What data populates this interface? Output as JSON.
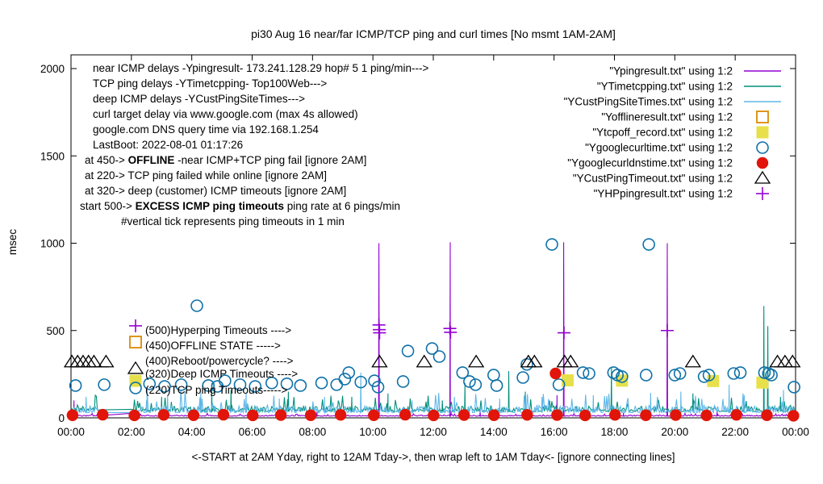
{
  "title": "pi30 Aug 16  near/far ICMP/TCP ping and curl times [No msmt 1AM-2AM]",
  "y_axis": {
    "label": "msec",
    "ticks": [
      0,
      500,
      1000,
      1500,
      2000
    ],
    "range": [
      0,
      2078
    ]
  },
  "x_axis": {
    "label": "<-START at 2AM Yday, right to 12AM Tday->, then wrap left to 1AM Tday<- [ignore connecting lines]",
    "tick_labels": [
      "00:00",
      "02:00",
      "04:00",
      "06:00",
      "08:00",
      "10:00",
      "12:00",
      "14:00",
      "16:00",
      "18:00",
      "20:00",
      "22:00",
      "00:00"
    ],
    "range_hours": [
      0,
      24
    ]
  },
  "info_lines": [
    {
      "x": 115,
      "segs": [
        {
          "t": "near ICMP delays -Ypingresult- 173.241.128.29 hop# 5 1 ping/min--->"
        }
      ]
    },
    {
      "x": 115,
      "segs": [
        {
          "t": "TCP ping delays -YTimetcpping- Top100Web--->"
        }
      ]
    },
    {
      "x": 115,
      "segs": [
        {
          "t": "deep ICMP delays -YCustPingSiteTimes--->"
        }
      ]
    },
    {
      "x": 115,
      "segs": [
        {
          "t": "curl target delay via www.google.com (max 4s allowed)"
        }
      ]
    },
    {
      "x": 115,
      "segs": [
        {
          "t": "google.com DNS query time via 192.168.1.254"
        }
      ]
    },
    {
      "x": 115,
      "segs": [
        {
          "t": "LastBoot: 2022-08-01 01:17:26"
        }
      ]
    },
    {
      "x": 105,
      "segs": [
        {
          "t": "at 450->  "
        },
        {
          "t": "OFFLINE",
          "b": true
        },
        {
          "t": " -near ICMP+TCP ping fail [ignore 2AM]"
        }
      ]
    },
    {
      "x": 105,
      "segs": [
        {
          "t": "at 220-> TCP ping failed while online [ignore 2AM]"
        }
      ]
    },
    {
      "x": 105,
      "segs": [
        {
          "t": "at 320-> deep (customer) ICMP timeouts [ignore 2AM]"
        }
      ]
    },
    {
      "x": 99,
      "segs": [
        {
          "t": "start 500->  "
        },
        {
          "t": "EXCESS ICMP ping timeouts",
          "b": true
        },
        {
          "t": " ping rate at 6 pings/min"
        }
      ]
    },
    {
      "x": 150,
      "segs": [
        {
          "t": "#vertical tick represents ping timeouts in 1 min"
        }
      ]
    }
  ],
  "legend": [
    {
      "label": "\"Ypingresult.txt\" using 1:2",
      "marker": "line",
      "color": "#9400D3"
    },
    {
      "label": "\"YTimetcpping.txt\" using 1:2",
      "marker": "line",
      "color": "#008F7A"
    },
    {
      "label": "\"YCustPingSiteTimes.txt\" using 1:2",
      "marker": "line",
      "color": "#5FB7E8"
    },
    {
      "label": "\"Yofflineresult.txt\" using 1:2",
      "marker": "osquare",
      "color": "#DB8B00"
    },
    {
      "label": "\"Ytcpoff_record.txt\" using 1:2",
      "marker": "fsquare",
      "color": "#E7E04B"
    },
    {
      "label": "\"Ygooglecurltime.txt\" using 1:2",
      "marker": "circle",
      "color": "#0F71A8"
    },
    {
      "label": "\"Ygooglecurldnstime.txt\" using 1:2",
      "marker": "fcircle",
      "color": "#E1150A"
    },
    {
      "label": "\"YCustPingTimeout.txt\" using 1:2",
      "marker": "triangle",
      "color": "#000000"
    },
    {
      "label": "\"YHPpingresult.txt\" using 1:2",
      "marker": "plus",
      "color": "#9400D3"
    }
  ],
  "annotations": [
    {
      "text": "(500)Hyperping Timeouts ---->",
      "ms": 501,
      "markers": [
        {
          "type": "plus",
          "color": "#9400D3",
          "ms": 527
        }
      ]
    },
    {
      "text": "(450)OFFLINE STATE ----->",
      "ms": 413,
      "markers": [
        {
          "type": "osquare",
          "color": "#DB8B00",
          "ms": 434
        }
      ]
    },
    {
      "text": "(400)Reboot/powercycle? ---->",
      "ms": 326,
      "markers": []
    },
    {
      "text": "(320)Deep ICMP Timeouts ---->",
      "ms": 252,
      "markers": [
        {
          "type": "triangle",
          "color": "#000000",
          "ms": 282
        }
      ]
    },
    {
      "text": "(220)TCP ping Timeouts----->",
      "ms": 159,
      "markers": [
        {
          "type": "fsquare",
          "color": "#E7E04B",
          "ms": 212
        },
        {
          "type": "circle",
          "color": "#0F71A8",
          "ms": 171
        }
      ]
    }
  ],
  "chart_data": {
    "type": "line",
    "title": "pi30 Aug 16  near/far ICMP/TCP ping and curl times [No msmt 1AM-2AM]",
    "xlabel": "<-START at 2AM Yday, right to 12AM Tday->, then wrap left to 1AM Tday<- [ignore connecting lines]",
    "ylabel": "msec",
    "xlim_hours": [
      0,
      24
    ],
    "ylim": [
      0,
      2078
    ],
    "grid": false,
    "legend_position": "top-right",
    "measurement_gap_hours": [
      1,
      2
    ],
    "series": [
      {
        "name": "Ypingresult",
        "type": "line",
        "color": "#9400D3",
        "baseline_ms": 10,
        "jitter_ms": 5,
        "seed": 3,
        "spikes": [
          [
            0.1,
            100
          ],
          [
            5.95,
            45
          ],
          [
            8.15,
            35
          ],
          [
            10.2,
            1000
          ],
          [
            12.0,
            40
          ],
          [
            12.56,
            1005
          ],
          [
            13.55,
            50
          ],
          [
            16.1,
            130
          ],
          [
            16.32,
            1005
          ],
          [
            18.3,
            30
          ],
          [
            19.75,
            1000
          ],
          [
            21.4,
            35
          ]
        ]
      },
      {
        "name": "YTimetcpping",
        "type": "line",
        "color": "#008F7A",
        "baseline_ms": 36,
        "jitter_ms": 26,
        "seed": 7,
        "spikes": [
          [
            3.0,
            120
          ],
          [
            4.66,
            199
          ],
          [
            5.3,
            160
          ],
          [
            7.2,
            150
          ],
          [
            9.3,
            120
          ],
          [
            10.5,
            140
          ],
          [
            12.3,
            100
          ],
          [
            13.05,
            200
          ],
          [
            14.5,
            268
          ],
          [
            15.05,
            150
          ],
          [
            17.9,
            290
          ],
          [
            20.6,
            140
          ],
          [
            22.95,
            640
          ],
          [
            23.08,
            525
          ],
          [
            23.5,
            120
          ]
        ]
      },
      {
        "name": "YCustPingSiteTimes",
        "type": "line",
        "color": "#5FB7E8",
        "baseline_ms": 30,
        "jitter_ms": 34,
        "seed": 13,
        "spikes": [
          [
            0.5,
            120
          ],
          [
            2.5,
            100
          ],
          [
            3.2,
            130
          ],
          [
            4.3,
            143
          ],
          [
            5.8,
            143
          ],
          [
            6.9,
            110
          ],
          [
            8.4,
            120
          ],
          [
            9.6,
            259
          ],
          [
            11.3,
            100
          ],
          [
            12.7,
            120
          ],
          [
            14.2,
            110
          ],
          [
            15.6,
            120
          ],
          [
            17.3,
            130
          ],
          [
            19.2,
            143
          ],
          [
            20.2,
            150
          ],
          [
            21.8,
            190
          ],
          [
            22.3,
            130
          ],
          [
            23.6,
            160
          ]
        ]
      },
      {
        "name": "Yofflineresult",
        "type": "scatter",
        "marker": "osquare",
        "color": "#DB8B00",
        "points": []
      },
      {
        "name": "Ytcpoff_record",
        "type": "scatter",
        "marker": "fsquare",
        "color": "#E7E04B",
        "points": [
          [
            16.45,
            215
          ],
          [
            18.25,
            213
          ],
          [
            21.27,
            211
          ],
          [
            22.9,
            202
          ]
        ]
      },
      {
        "name": "Ygooglecurltime",
        "type": "scatter",
        "marker": "circle",
        "color": "#0F71A8",
        "points": [
          [
            0.15,
            185
          ],
          [
            1.1,
            190
          ],
          [
            2.6,
            195
          ],
          [
            3.1,
            180
          ],
          [
            3.65,
            190
          ],
          [
            4.17,
            642
          ],
          [
            4.55,
            185
          ],
          [
            4.85,
            180
          ],
          [
            5.1,
            212
          ],
          [
            5.6,
            190
          ],
          [
            6.1,
            180
          ],
          [
            6.65,
            200
          ],
          [
            7.15,
            195
          ],
          [
            7.6,
            185
          ],
          [
            8.3,
            200
          ],
          [
            8.8,
            190
          ],
          [
            9.07,
            222
          ],
          [
            9.2,
            259
          ],
          [
            9.6,
            205
          ],
          [
            10.05,
            212
          ],
          [
            10.17,
            176
          ],
          [
            11.0,
            208
          ],
          [
            11.16,
            383
          ],
          [
            11.96,
            397
          ],
          [
            12.2,
            351
          ],
          [
            12.97,
            259
          ],
          [
            13.2,
            208
          ],
          [
            13.4,
            190
          ],
          [
            14.0,
            245
          ],
          [
            14.1,
            185
          ],
          [
            14.97,
            231
          ],
          [
            15.1,
            306
          ],
          [
            15.93,
            993
          ],
          [
            16.16,
            190
          ],
          [
            16.96,
            259
          ],
          [
            17.16,
            254
          ],
          [
            17.97,
            259
          ],
          [
            18.1,
            245
          ],
          [
            18.25,
            236
          ],
          [
            19.05,
            245
          ],
          [
            19.14,
            993
          ],
          [
            20.0,
            245
          ],
          [
            20.17,
            254
          ],
          [
            20.97,
            236
          ],
          [
            21.13,
            245
          ],
          [
            21.95,
            254
          ],
          [
            22.17,
            259
          ],
          [
            22.97,
            259
          ],
          [
            23.1,
            254
          ],
          [
            23.2,
            245
          ],
          [
            23.95,
            176
          ]
        ]
      },
      {
        "name": "Ygooglecurldnstime",
        "type": "scatter",
        "marker": "fcircle",
        "color": "#E1150A",
        "points": [
          [
            0.05,
            15
          ],
          [
            1.05,
            18
          ],
          [
            2.1,
            14
          ],
          [
            3.07,
            17
          ],
          [
            4.06,
            15
          ],
          [
            5.05,
            18
          ],
          [
            6.02,
            14
          ],
          [
            6.95,
            16
          ],
          [
            7.94,
            15
          ],
          [
            8.93,
            17
          ],
          [
            10.03,
            15
          ],
          [
            11.07,
            18
          ],
          [
            12.01,
            14
          ],
          [
            13.02,
            16
          ],
          [
            14.01,
            15
          ],
          [
            15.11,
            17
          ],
          [
            16.05,
            254
          ],
          [
            16.1,
            16
          ],
          [
            17.03,
            14
          ],
          [
            18.02,
            17
          ],
          [
            19.04,
            15
          ],
          [
            20.03,
            16
          ],
          [
            21.05,
            14
          ],
          [
            22.04,
            17
          ],
          [
            23.05,
            15
          ],
          [
            23.93,
            12
          ]
        ]
      },
      {
        "name": "YCustPingTimeout",
        "type": "scatter",
        "marker": "triangle",
        "color": "#000000",
        "points": [
          [
            0.03,
            320
          ],
          [
            0.22,
            320
          ],
          [
            0.4,
            320
          ],
          [
            0.58,
            320
          ],
          [
            0.76,
            320
          ],
          [
            1.16,
            320
          ],
          [
            10.22,
            320
          ],
          [
            11.7,
            320
          ],
          [
            13.42,
            320
          ],
          [
            15.15,
            320
          ],
          [
            15.35,
            320
          ],
          [
            16.35,
            320
          ],
          [
            16.55,
            320
          ],
          [
            20.6,
            320
          ],
          [
            23.4,
            320
          ],
          [
            23.65,
            320
          ],
          [
            23.9,
            320
          ]
        ],
        "segments": [
          [
            0.0,
            292,
            1.25,
            292
          ],
          [
            23.3,
            292,
            24.0,
            292
          ]
        ]
      },
      {
        "name": "YHPpingresult",
        "type": "scatter",
        "marker": "plus",
        "color": "#9400D3",
        "points": [
          [
            10.2,
            532
          ],
          [
            10.21,
            505
          ],
          [
            10.22,
            487
          ],
          [
            12.55,
            512
          ],
          [
            12.57,
            490
          ],
          [
            16.33,
            487
          ],
          [
            19.75,
            500
          ]
        ]
      }
    ]
  }
}
